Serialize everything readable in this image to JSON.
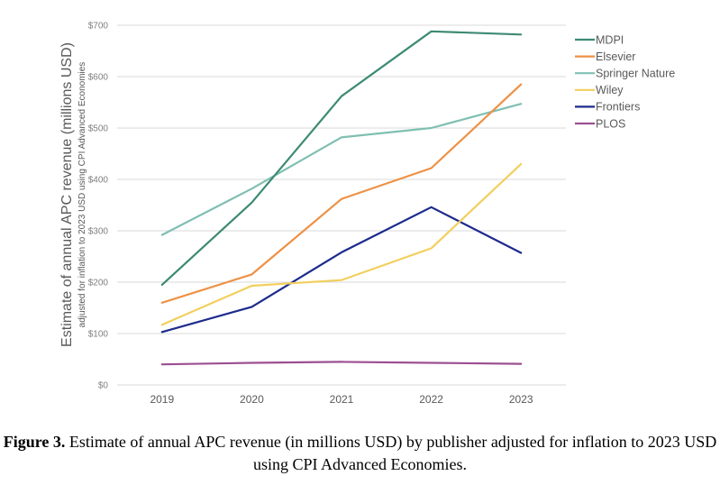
{
  "chart_data": {
    "type": "line",
    "categories": [
      "2019",
      "2020",
      "2021",
      "2022",
      "2023"
    ],
    "ylabel": "Estimate of annual APC revenue (millions USD)",
    "ylabel_sub": "adjusted for inflation to 2023 USD using CPI Advanced Economies",
    "ylim": [
      0,
      700
    ],
    "yticks": [
      {
        "value": 0,
        "label": "$0"
      },
      {
        "value": 100,
        "label": "$100"
      },
      {
        "value": 200,
        "label": "$200"
      },
      {
        "value": 300,
        "label": "$300"
      },
      {
        "value": 400,
        "label": "$400"
      },
      {
        "value": 500,
        "label": "$500"
      },
      {
        "value": 600,
        "label": "$600"
      },
      {
        "value": 700,
        "label": "$700"
      }
    ],
    "grid": true,
    "legend_position": "right",
    "series": [
      {
        "name": "MDPI",
        "color": "#3d8a74",
        "values": [
          195,
          355,
          562,
          688,
          682
        ]
      },
      {
        "name": "Elsevier",
        "color": "#ed9145",
        "values": [
          160,
          215,
          362,
          422,
          585
        ]
      },
      {
        "name": "Springer Nature",
        "color": "#7fbfb2",
        "values": [
          292,
          382,
          482,
          500,
          547
        ]
      },
      {
        "name": "Wiley",
        "color": "#f2cf5e",
        "values": [
          117,
          193,
          204,
          266,
          430
        ]
      },
      {
        "name": "Frontiers",
        "color": "#1c2a8c",
        "values": [
          103,
          152,
          258,
          346,
          257
        ]
      },
      {
        "name": "PLOS",
        "color": "#9c4f91",
        "values": [
          40,
          43,
          45,
          43,
          41
        ]
      }
    ]
  },
  "caption": {
    "label": "Figure 3.",
    "text": " Estimate of annual APC revenue (in millions USD) by publisher adjusted for inflation to 2023 USD using CPI Advanced Economies."
  }
}
